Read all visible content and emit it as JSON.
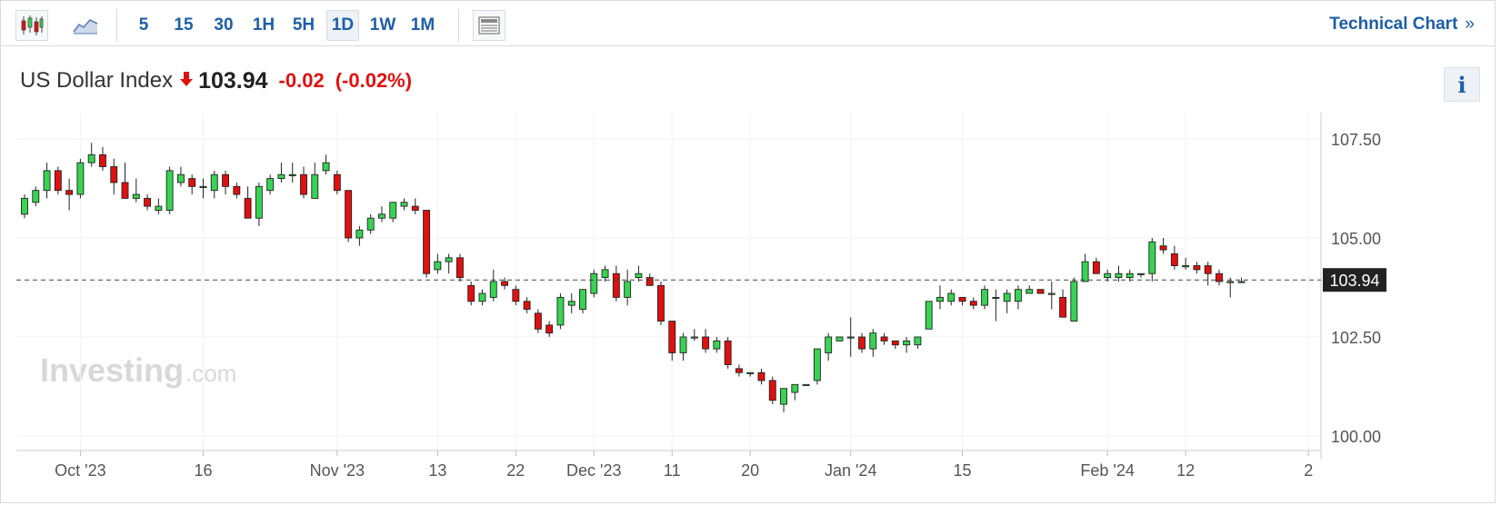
{
  "toolbar": {
    "icons": [
      "candlestick-icon",
      "line-chart-icon",
      "news-icon"
    ],
    "intervals": [
      "5",
      "15",
      "30",
      "1H",
      "5H",
      "1D",
      "1W",
      "1M"
    ],
    "active_interval": "1D",
    "technical_chart_label": "Technical Chart",
    "technical_chart_arrow": "»"
  },
  "header": {
    "title": "US Dollar Index",
    "direction_icon": "down-arrow-icon",
    "price": "103.94",
    "change": "-0.02",
    "change_pct": "(-0.02%)",
    "info_label": "i"
  },
  "watermark": {
    "brand": "Investing",
    "suffix": ".com"
  },
  "colors": {
    "up": "#39d353",
    "down": "#e0100f",
    "link": "#1d5ea8"
  },
  "chart_data": {
    "type": "candlestick",
    "ylim": [
      99.7,
      107.9
    ],
    "y_ticks": [
      107.5,
      105.0,
      102.5,
      100.0
    ],
    "y_tick_labels": [
      "107.50",
      "105.00",
      "102.50",
      "100.00"
    ],
    "x_tick_labels": [
      {
        "label": "Oct '23",
        "index": 5
      },
      {
        "label": "16",
        "index": 16
      },
      {
        "label": "Nov '23",
        "index": 28
      },
      {
        "label": "13",
        "index": 37
      },
      {
        "label": "22",
        "index": 44
      },
      {
        "label": "Dec '23",
        "index": 51
      },
      {
        "label": "11",
        "index": 58
      },
      {
        "label": "20",
        "index": 65
      },
      {
        "label": "Jan '24",
        "index": 74
      },
      {
        "label": "15",
        "index": 84
      },
      {
        "label": "Feb '24",
        "index": 97
      },
      {
        "label": "12",
        "index": 104
      },
      {
        "label": "2",
        "index": 115
      }
    ],
    "last_price": 103.94,
    "last_price_label": "103.94",
    "candles": [
      [
        105.6,
        106.1,
        105.5,
        106.0
      ],
      [
        105.9,
        106.3,
        105.8,
        106.2
      ],
      [
        106.2,
        106.9,
        106.0,
        106.7
      ],
      [
        106.7,
        106.8,
        106.1,
        106.2
      ],
      [
        106.2,
        106.5,
        105.7,
        106.1
      ],
      [
        106.1,
        107.0,
        106.0,
        106.9
      ],
      [
        106.9,
        107.4,
        106.8,
        107.1
      ],
      [
        107.1,
        107.3,
        106.7,
        106.8
      ],
      [
        106.8,
        107.0,
        106.1,
        106.4
      ],
      [
        106.4,
        106.9,
        106.0,
        106.0
      ],
      [
        106.0,
        106.5,
        105.9,
        106.1
      ],
      [
        106.0,
        106.1,
        105.7,
        105.8
      ],
      [
        105.7,
        106.0,
        105.6,
        105.8
      ],
      [
        105.7,
        106.8,
        105.6,
        106.7
      ],
      [
        106.4,
        106.8,
        106.3,
        106.6
      ],
      [
        106.5,
        106.6,
        106.1,
        106.3
      ],
      [
        106.3,
        106.5,
        106.0,
        106.3
      ],
      [
        106.2,
        106.7,
        106.0,
        106.6
      ],
      [
        106.6,
        106.7,
        106.1,
        106.3
      ],
      [
        106.3,
        106.4,
        106.0,
        106.1
      ],
      [
        106.0,
        106.3,
        105.5,
        105.5
      ],
      [
        105.5,
        106.4,
        105.3,
        106.3
      ],
      [
        106.2,
        106.6,
        106.1,
        106.5
      ],
      [
        106.5,
        106.9,
        106.4,
        106.6
      ],
      [
        106.6,
        106.9,
        106.4,
        106.6
      ],
      [
        106.6,
        106.8,
        106.0,
        106.1
      ],
      [
        106.0,
        106.9,
        106.0,
        106.6
      ],
      [
        106.7,
        107.1,
        106.6,
        106.9
      ],
      [
        106.6,
        106.7,
        106.1,
        106.2
      ],
      [
        106.2,
        106.2,
        104.9,
        105.0
      ],
      [
        105.0,
        105.3,
        104.8,
        105.2
      ],
      [
        105.2,
        105.6,
        105.1,
        105.5
      ],
      [
        105.5,
        105.8,
        105.4,
        105.6
      ],
      [
        105.5,
        105.9,
        105.4,
        105.9
      ],
      [
        105.8,
        106.0,
        105.7,
        105.9
      ],
      [
        105.8,
        106.0,
        105.6,
        105.7
      ],
      [
        105.7,
        105.7,
        104.0,
        104.1
      ],
      [
        104.2,
        104.6,
        104.1,
        104.4
      ],
      [
        104.4,
        104.6,
        104.1,
        104.5
      ],
      [
        104.5,
        104.6,
        103.9,
        104.0
      ],
      [
        103.8,
        103.9,
        103.3,
        103.4
      ],
      [
        103.4,
        103.7,
        103.3,
        103.6
      ],
      [
        103.5,
        104.2,
        103.4,
        103.9
      ],
      [
        103.9,
        104.0,
        103.7,
        103.8
      ],
      [
        103.7,
        103.8,
        103.3,
        103.4
      ],
      [
        103.4,
        103.5,
        103.1,
        103.2
      ],
      [
        103.1,
        103.2,
        102.6,
        102.7
      ],
      [
        102.8,
        102.9,
        102.5,
        102.6
      ],
      [
        102.8,
        103.6,
        102.7,
        103.5
      ],
      [
        103.3,
        103.6,
        103.1,
        103.4
      ],
      [
        103.2,
        103.7,
        103.1,
        103.7
      ],
      [
        103.6,
        104.2,
        103.5,
        104.1
      ],
      [
        104.0,
        104.3,
        103.9,
        104.2
      ],
      [
        104.1,
        104.3,
        103.4,
        103.5
      ],
      [
        103.5,
        104.2,
        103.3,
        103.9
      ],
      [
        104.0,
        104.3,
        103.9,
        104.1
      ],
      [
        104.0,
        104.1,
        103.8,
        103.8
      ],
      [
        103.8,
        103.9,
        102.8,
        102.9
      ],
      [
        102.9,
        102.9,
        101.9,
        102.1
      ],
      [
        102.1,
        102.6,
        101.9,
        102.5
      ],
      [
        102.5,
        102.7,
        102.4,
        102.5
      ],
      [
        102.5,
        102.7,
        102.1,
        102.2
      ],
      [
        102.2,
        102.5,
        102.1,
        102.4
      ],
      [
        102.4,
        102.5,
        101.7,
        101.8
      ],
      [
        101.7,
        101.8,
        101.5,
        101.6
      ],
      [
        101.6,
        101.6,
        101.5,
        101.6
      ],
      [
        101.6,
        101.7,
        101.3,
        101.4
      ],
      [
        101.4,
        101.5,
        100.8,
        100.9
      ],
      [
        100.8,
        101.2,
        100.6,
        101.2
      ],
      [
        101.1,
        101.3,
        100.9,
        101.3
      ],
      [
        101.3,
        101.3,
        101.3,
        101.3
      ],
      [
        101.4,
        102.2,
        101.3,
        102.2
      ],
      [
        102.1,
        102.6,
        101.9,
        102.5
      ],
      [
        102.4,
        102.5,
        102.4,
        102.5
      ],
      [
        102.5,
        103.0,
        102.0,
        102.5
      ],
      [
        102.5,
        102.6,
        102.1,
        102.2
      ],
      [
        102.2,
        102.7,
        102.0,
        102.6
      ],
      [
        102.5,
        102.6,
        102.3,
        102.4
      ],
      [
        102.4,
        102.4,
        102.2,
        102.3
      ],
      [
        102.3,
        102.5,
        102.1,
        102.4
      ],
      [
        102.3,
        102.5,
        102.2,
        102.5
      ],
      [
        102.7,
        103.4,
        102.7,
        103.4
      ],
      [
        103.4,
        103.8,
        103.2,
        103.5
      ],
      [
        103.4,
        103.7,
        103.3,
        103.6
      ],
      [
        103.5,
        103.5,
        103.3,
        103.4
      ],
      [
        103.4,
        103.5,
        103.2,
        103.3
      ],
      [
        103.3,
        103.8,
        103.2,
        103.7
      ],
      [
        103.5,
        103.7,
        102.9,
        103.5
      ],
      [
        103.4,
        103.7,
        103.1,
        103.6
      ],
      [
        103.4,
        103.8,
        103.2,
        103.7
      ],
      [
        103.6,
        103.8,
        103.6,
        103.7
      ],
      [
        103.7,
        103.7,
        103.6,
        103.6
      ],
      [
        103.6,
        103.9,
        103.2,
        103.6
      ],
      [
        103.5,
        103.7,
        103.0,
        103.0
      ],
      [
        102.9,
        104.0,
        102.9,
        103.9
      ],
      [
        103.9,
        104.6,
        103.9,
        104.4
      ],
      [
        104.4,
        104.5,
        104.1,
        104.1
      ],
      [
        104.0,
        104.2,
        103.9,
        104.1
      ],
      [
        104.0,
        104.3,
        103.9,
        104.1
      ],
      [
        104.0,
        104.2,
        103.9,
        104.1
      ],
      [
        104.1,
        104.1,
        104.0,
        104.1
      ],
      [
        104.1,
        105.0,
        103.9,
        104.9
      ],
      [
        104.8,
        105.0,
        104.6,
        104.7
      ],
      [
        104.6,
        104.8,
        104.2,
        104.3
      ],
      [
        104.3,
        104.5,
        104.2,
        104.3
      ],
      [
        104.3,
        104.4,
        104.1,
        104.2
      ],
      [
        104.3,
        104.4,
        103.8,
        104.1
      ],
      [
        104.1,
        104.2,
        103.8,
        103.9
      ],
      [
        103.9,
        104.0,
        103.5,
        103.9
      ],
      [
        103.9,
        104.0,
        103.9,
        103.9
      ]
    ]
  }
}
